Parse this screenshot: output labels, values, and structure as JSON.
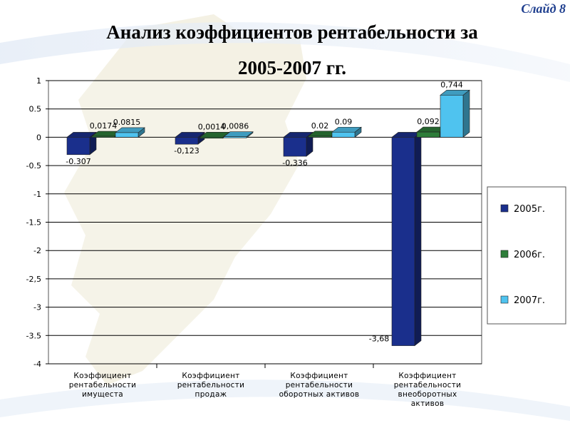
{
  "slide": {
    "label": "Слайд 8"
  },
  "title": {
    "line1": "Анализ коэффициентов рентабельности за",
    "line2": "2005-2007 гг."
  },
  "colors": {
    "series": [
      "#1a2f8c",
      "#2e7d3a",
      "#4fc3ef"
    ],
    "grid": "#000000"
  },
  "chart_data": {
    "type": "bar",
    "categories": [
      [
        "Коэффициент",
        "рентабельности",
        "имущеста"
      ],
      [
        "Коэффициент",
        "рентабельности",
        "продаж"
      ],
      [
        "Коэффициент",
        "рентабельности",
        "оборотных активов"
      ],
      [
        "Коэффициент",
        "рентабельности",
        "внеоборотных",
        "активов"
      ]
    ],
    "series": [
      {
        "name": "2005г.",
        "values": [
          -0.307,
          -0.123,
          -0.336,
          -3.68
        ],
        "labels": [
          "-0.307",
          "-0,123",
          "-0,336",
          "-3,68"
        ]
      },
      {
        "name": "2006г.",
        "values": [
          0.0174,
          0.0014,
          0.02,
          0.092
        ],
        "labels": [
          "0,0174",
          "0,0014",
          "0.02",
          "0,092"
        ]
      },
      {
        "name": "2007г.",
        "values": [
          0.0815,
          0.0086,
          0.09,
          0.744
        ],
        "labels": [
          "0.0815",
          "0,0086",
          "0.09",
          "0,744"
        ]
      }
    ],
    "ylim": [
      -4,
      1
    ],
    "yticks": [
      "1",
      "0.5",
      "0",
      "-0.5",
      "-1",
      "-1.5",
      "-2",
      "-2,5",
      "-3",
      "-3.5",
      "-4"
    ],
    "grid": true,
    "legend": "right"
  }
}
